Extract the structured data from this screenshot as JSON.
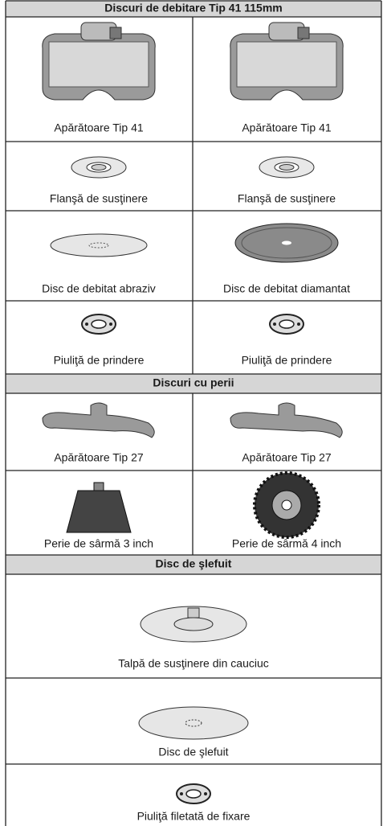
{
  "sections": [
    {
      "title": "Discuri de debitare Tip 41 115mm",
      "rows": [
        [
          "Apărătoare Tip 41",
          "Apărătoare Tip 41"
        ],
        [
          "Flanşă de susţinere",
          "Flanşă de susţinere"
        ],
        [
          "Disc de debitat abraziv",
          "Disc de debitat diamantat"
        ],
        [
          "Piuliţă de prindere",
          "Piuliţă de prindere"
        ]
      ]
    },
    {
      "title": "Discuri cu perii",
      "rows": [
        [
          "Apărătoare Tip 27",
          "Apărătoare Tip 27"
        ],
        [
          "Perie de sârmă 3 inch",
          "Perie de sârmă 4 inch"
        ]
      ]
    },
    {
      "title": "Disc de şlefuit",
      "rows": [
        [
          "Talpă de susţinere din cauciuc"
        ],
        [
          "Disc de şlefuit"
        ],
        [
          "Piuliţă filetată de fixare"
        ]
      ]
    }
  ]
}
